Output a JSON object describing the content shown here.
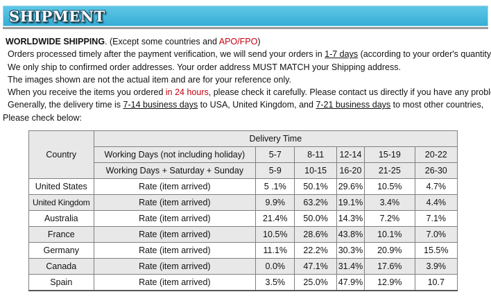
{
  "banner": {
    "title": "SHIPMENT"
  },
  "info": {
    "line1_bold": "WORLDWIDE SHIPPING",
    "line1_mid": ". (Except some countries and ",
    "line1_red": "APO/FPO",
    "line1_end": ")",
    "line2_start": "Orders processed timely after the payment verification, we will send your orders in ",
    "line2_u": "1-7 days",
    "line2_end": " (according to your order's quantity).",
    "line3": "We only ship to confirmed order addresses. Your order address MUST MATCH your Shipping address.",
    "line4": "The images shown are not the actual item and are for your reference only.",
    "line5_start": "When you receive the items you ordered ",
    "line5_red": "in 24 hours",
    "line5_end": ", please check it carefully. Please contact us directly if you have any problem.",
    "line6_start": "Generally, the delivery time is ",
    "line6_u1": "7-14 business days",
    "line6_mid": " to USA, United Kingdom, and ",
    "line6_u2": "7-21 business days",
    "line6_end": " to most other countries,",
    "line7": "Please check below:"
  },
  "table": {
    "delivery_time": "Delivery Time",
    "country": "Country",
    "working_days_label": "Working Days (not including holiday)",
    "working_days": [
      "5-7",
      "8-11",
      "12-14",
      "15-19",
      "20-22"
    ],
    "weekend_label": "Working Days + Saturday + Sunday",
    "weekend_days": [
      "5-9",
      "10-15",
      "16-20",
      "21-25",
      "26-30"
    ],
    "rows": [
      {
        "country": "United States",
        "rate": "Rate (item arrived)",
        "values": [
          "5 .1%",
          "50.1%",
          "29.6%",
          "10.5%",
          "4.7%"
        ]
      },
      {
        "country": "United Kingdom",
        "rate": "Rate (item arrived)",
        "values": [
          "9.9%",
          "63.2%",
          "19.1%",
          "3.4%",
          "4.4%"
        ]
      },
      {
        "country": "Australia",
        "rate": "Rate (item arrived)",
        "values": [
          "21.4%",
          "50.0%",
          "14.3%",
          "7.2%",
          "7.1%"
        ]
      },
      {
        "country": "France",
        "rate": "Rate (item arrived)",
        "values": [
          "10.5%",
          "28.6%",
          "43.8%",
          "10.1%",
          "7.0%"
        ]
      },
      {
        "country": "Germany",
        "rate": "Rate (item arrived)",
        "values": [
          "11.1%",
          "22.2%",
          "30.3%",
          "20.9%",
          "15.5%"
        ]
      },
      {
        "country": "Canada",
        "rate": "Rate (item arrived)",
        "values": [
          "0.0%",
          "47.1%",
          "31.4%",
          "17.6%",
          "3.9%"
        ]
      },
      {
        "country": "Spain",
        "rate": "Rate (item arrived)",
        "values": [
          "3.5%",
          "25.0%",
          "47.9%",
          "12.9%",
          "10.7"
        ]
      }
    ]
  }
}
